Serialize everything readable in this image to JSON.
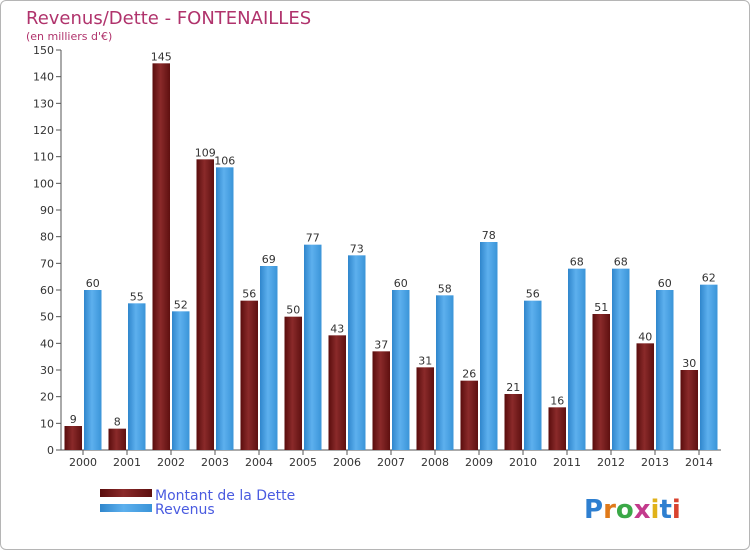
{
  "chart_data": {
    "type": "bar",
    "title": "Revenus/Dette - FONTENAILLES",
    "subtitle": "(en milliers d'€)",
    "categories": [
      "2000",
      "2001",
      "2002",
      "2003",
      "2004",
      "2005",
      "2006",
      "2007",
      "2008",
      "2009",
      "2010",
      "2011",
      "2012",
      "2013",
      "2014"
    ],
    "series": [
      {
        "name": "Montant de la Dette",
        "color": "#7a1818",
        "values": [
          9,
          8,
          145,
          109,
          56,
          50,
          43,
          37,
          31,
          26,
          21,
          16,
          51,
          40,
          30
        ]
      },
      {
        "name": "Revenus",
        "color": "#3d9be0",
        "values": [
          60,
          55,
          52,
          106,
          69,
          77,
          73,
          60,
          58,
          78,
          56,
          68,
          68,
          60,
          62
        ]
      }
    ],
    "ylim": [
      0,
      150
    ],
    "ytick_step": 10,
    "grid": false,
    "legend_position": "bottom-left",
    "xlabel": "",
    "ylabel": ""
  },
  "logo": {
    "text": "Proxiti"
  }
}
